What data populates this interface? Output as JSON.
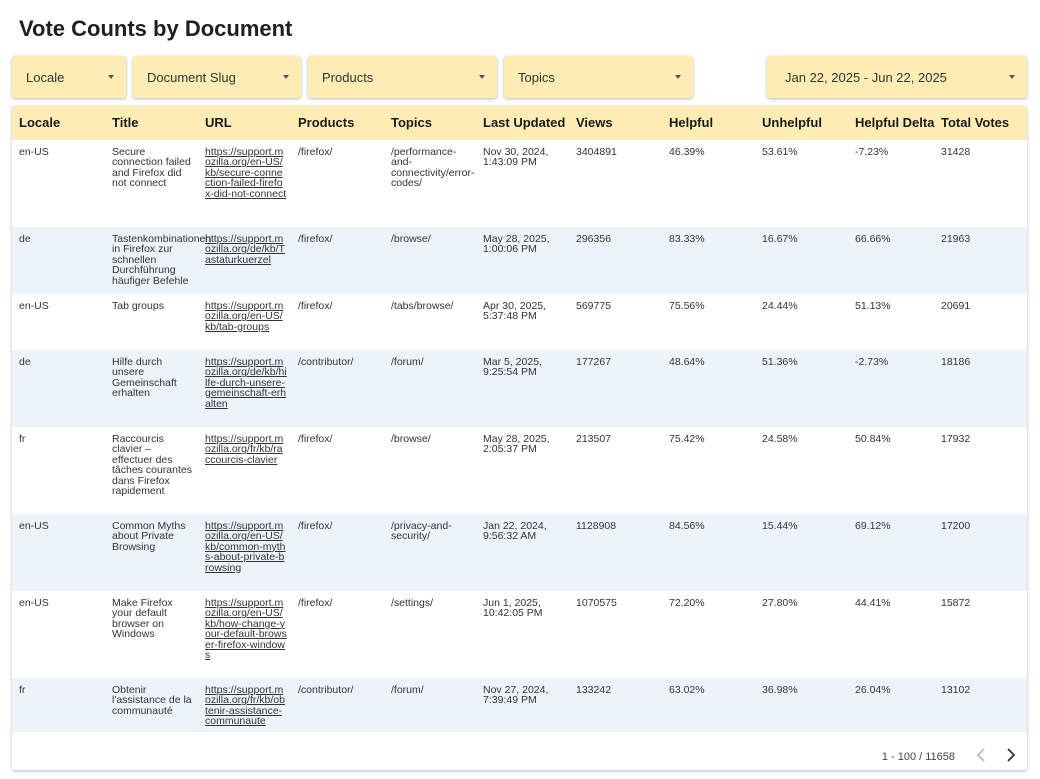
{
  "page": {
    "title": "Vote Counts by Document"
  },
  "filters": {
    "locale": "Locale",
    "slug": "Document Slug",
    "products": "Products",
    "topics": "Topics",
    "date_range": "Jan 22, 2025 - Jun 22, 2025"
  },
  "table": {
    "columns": [
      "Locale",
      "Title",
      "URL",
      "Products",
      "Topics",
      "Last Updated",
      "Views",
      "Helpful",
      "Unhelpful",
      "Helpful Delta",
      "Total Votes"
    ],
    "rows": [
      {
        "locale": "en-US",
        "title": "Secure connection failed and Firefox did not connect",
        "url": "https://support.mozilla.org/en-US/kb/secure-connection-failed-firefox-did-not-connect",
        "products": "/firefox/",
        "topics": "/performance-and-connectivity/error-codes/",
        "last_updated": "Nov 30, 2024, 1:43:09 PM",
        "views": "3404891",
        "helpful": "46.39%",
        "unhelpful": "53.61%",
        "delta": "-7.23%",
        "total": "31428"
      },
      {
        "locale": "de",
        "title": "Tastenkombinationen in Firefox zur schnellen Durchführung häufiger Befehle",
        "url": "https://support.mozilla.org/de/kb/Tastaturkuerzel",
        "products": "/firefox/",
        "topics": "/browse/",
        "last_updated": "May 28, 2025, 1:00:06 PM",
        "views": "296356",
        "helpful": "83.33%",
        "unhelpful": "16.67%",
        "delta": "66.66%",
        "total": "21963"
      },
      {
        "locale": "en-US",
        "title": "Tab groups",
        "url": "https://support.mozilla.org/en-US/kb/tab-groups",
        "products": "/firefox/",
        "topics": "/tabs/browse/",
        "last_updated": "Apr 30, 2025, 5:37:48 PM",
        "views": "569775",
        "helpful": "75.56%",
        "unhelpful": "24.44%",
        "delta": "51.13%",
        "total": "20691"
      },
      {
        "locale": "de",
        "title": "Hilfe durch unsere Gemeinschaft erhalten",
        "url": "https://support.mozilla.org/de/kb/hilfe-durch-unsere-gemeinschaft-erhalten",
        "products": "/contributor/",
        "topics": "/forum/",
        "last_updated": "Mar 5, 2025, 9:25:54 PM",
        "views": "177267",
        "helpful": "48.64%",
        "unhelpful": "51.36%",
        "delta": "-2.73%",
        "total": "18186"
      },
      {
        "locale": "fr",
        "title": "Raccourcis clavier – effectuer des tâches courantes dans Firefox rapidement",
        "url": "https://support.mozilla.org/fr/kb/raccourcis-clavier",
        "products": "/firefox/",
        "topics": "/browse/",
        "last_updated": "May 28, 2025, 2:05:37 PM",
        "views": "213507",
        "helpful": "75.42%",
        "unhelpful": "24.58%",
        "delta": "50.84%",
        "total": "17932"
      },
      {
        "locale": "en-US",
        "title": "Common Myths about Private Browsing",
        "url": "https://support.mozilla.org/en-US/kb/common-myths-about-private-browsing",
        "products": "/firefox/",
        "topics": "/privacy-and-security/",
        "last_updated": "Jan 22, 2024, 9:56:32 AM",
        "views": "1128908",
        "helpful": "84.56%",
        "unhelpful": "15.44%",
        "delta": "69.12%",
        "total": "17200"
      },
      {
        "locale": "en-US",
        "title": "Make Firefox your default browser on Windows",
        "url": "https://support.mozilla.org/en-US/kb/how-change-your-default-browser-firefox-windows",
        "products": "/firefox/",
        "topics": "/settings/",
        "last_updated": "Jun 1, 2025, 10:42:05 PM",
        "views": "1070575",
        "helpful": "72.20%",
        "unhelpful": "27.80%",
        "delta": "44.41%",
        "total": "15872"
      },
      {
        "locale": "fr",
        "title": "Obtenir l'assistance de la communauté",
        "url": "https://support.mozilla.org/fr/kb/obtenir-assistance-communaute",
        "products": "/contributor/",
        "topics": "/forum/",
        "last_updated": "Nov 27, 2024, 7:39:49 PM",
        "views": "133242",
        "helpful": "63.02%",
        "unhelpful": "36.98%",
        "delta": "26.04%",
        "total": "13102"
      }
    ]
  },
  "pagination": {
    "range_text": "1 - 100 / 11658"
  },
  "icons": {
    "dropdown": "caret-down-icon",
    "prev": "chevron-left-icon",
    "next": "chevron-right-icon"
  },
  "colors": {
    "header_bg": "#fdedb5",
    "row_alt_bg": "#edf3fb"
  }
}
